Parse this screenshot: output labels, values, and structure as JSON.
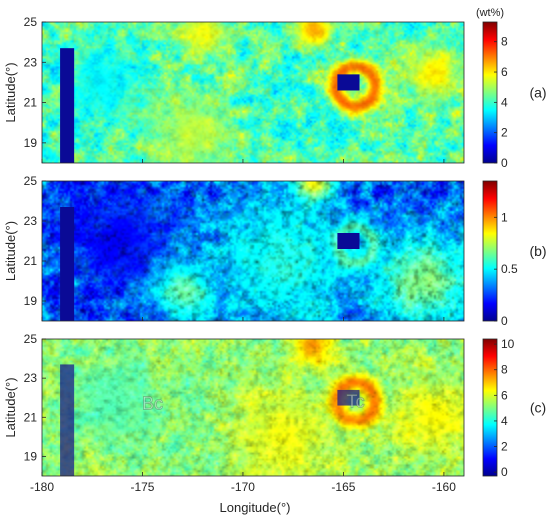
{
  "chart_data": {
    "type": "heatmap",
    "xlabel": "Longitude(°)",
    "xlim": [
      -180,
      -159
    ],
    "xticks": [
      -180,
      -175,
      -170,
      -165,
      -160
    ],
    "ylim": [
      18,
      25
    ],
    "yticks": [
      19,
      21,
      23,
      25
    ],
    "colormap": "jet",
    "panels": [
      {
        "id": "a",
        "label": "(a)",
        "ylabel": "Latitude(°)",
        "colorbar": {
          "label": "(wt%)",
          "min": 0,
          "max": 9.3,
          "ticks": [
            0,
            2,
            4,
            6,
            8
          ]
        },
        "field": {
          "background": 4.2,
          "noise": 1.4,
          "features": [
            {
              "lon": -164.4,
              "lat": 21.8,
              "r": 1.5,
              "kind": "ring",
              "value": 7.6
            },
            {
              "lon": -166.5,
              "lat": 24.7,
              "r": 1.0,
              "kind": "blob",
              "value": 7.0
            },
            {
              "lon": -172.0,
              "lat": 24.6,
              "r": 1.2,
              "kind": "blob",
              "value": 6.0
            },
            {
              "lon": -160.5,
              "lat": 22.5,
              "r": 1.4,
              "kind": "blob",
              "value": 6.2
            },
            {
              "lon": -172.5,
              "lat": 19.5,
              "r": 2.0,
              "kind": "blob",
              "value": 5.4
            },
            {
              "lon": -177.0,
              "lat": 22.0,
              "r": 1.8,
              "kind": "blob",
              "value": 3.2
            }
          ]
        },
        "masks": [
          {
            "lon0": -179.1,
            "lon1": -178.4,
            "lat0": 18.0,
            "lat1": 23.7
          },
          {
            "lon0": -165.3,
            "lon1": -164.2,
            "lat0": 21.6,
            "lat1": 22.4
          }
        ],
        "hillshade": 0.05
      },
      {
        "id": "b",
        "label": "(b)",
        "ylabel": "Latitude(°)",
        "colorbar": {
          "label": "",
          "min": 0,
          "max": 1.35,
          "ticks": [
            0,
            0.5,
            1
          ]
        },
        "field": {
          "background": 0.28,
          "noise": 0.22,
          "features": [
            {
              "lon": -164.4,
              "lat": 21.8,
              "r": 1.4,
              "kind": "ring",
              "value": 0.65
            },
            {
              "lon": -166.5,
              "lat": 24.8,
              "r": 0.9,
              "kind": "blob",
              "value": 1.0
            },
            {
              "lon": -168.0,
              "lat": 21.0,
              "r": 3.5,
              "kind": "blob",
              "value": 0.6
            },
            {
              "lon": -161.0,
              "lat": 20.0,
              "r": 2.5,
              "kind": "blob",
              "value": 0.75
            },
            {
              "lon": -176.0,
              "lat": 22.0,
              "r": 2.5,
              "kind": "blob",
              "value": 0.15
            },
            {
              "lon": -173.0,
              "lat": 19.5,
              "r": 1.5,
              "kind": "blob",
              "value": 0.7
            }
          ]
        },
        "masks": [
          {
            "lon0": -179.1,
            "lon1": -178.4,
            "lat0": 18.0,
            "lat1": 23.7
          },
          {
            "lon0": -165.3,
            "lon1": -164.2,
            "lat0": 21.6,
            "lat1": 22.4
          }
        ],
        "hillshade": 0.22
      },
      {
        "id": "c",
        "label": "(c)",
        "ylabel": "Latitude(°)",
        "colorbar": {
          "label": "",
          "min": -0.3,
          "max": 10.4,
          "ticks": [
            0,
            2,
            4,
            6,
            8,
            10
          ]
        },
        "field": {
          "background": 5.2,
          "noise": 0.9,
          "features": [
            {
              "lon": -164.4,
              "lat": 21.8,
              "r": 1.5,
              "kind": "ring",
              "value": 8.4
            },
            {
              "lon": -166.5,
              "lat": 24.7,
              "r": 1.0,
              "kind": "blob",
              "value": 8.0
            },
            {
              "lon": -176.5,
              "lat": 21.8,
              "r": 2.2,
              "kind": "blob",
              "value": 4.4
            },
            {
              "lon": -168.0,
              "lat": 20.0,
              "r": 2.5,
              "kind": "blob",
              "value": 6.4
            },
            {
              "lon": -160.5,
              "lat": 21.0,
              "r": 2.0,
              "kind": "blob",
              "value": 6.6
            }
          ]
        },
        "masks": [
          {
            "lon0": -179.1,
            "lon1": -178.4,
            "lat0": 18.0,
            "lat1": 23.7
          },
          {
            "lon0": -165.3,
            "lon1": -164.2,
            "lat0": 21.6,
            "lat1": 22.4
          }
        ],
        "hillshade": 0.12,
        "overlay_text": [
          {
            "text": "Bc",
            "lon": -174.5,
            "lat": 21.7
          },
          {
            "text": "Tc",
            "lon": -164.4,
            "lat": 21.8
          }
        ]
      }
    ]
  }
}
